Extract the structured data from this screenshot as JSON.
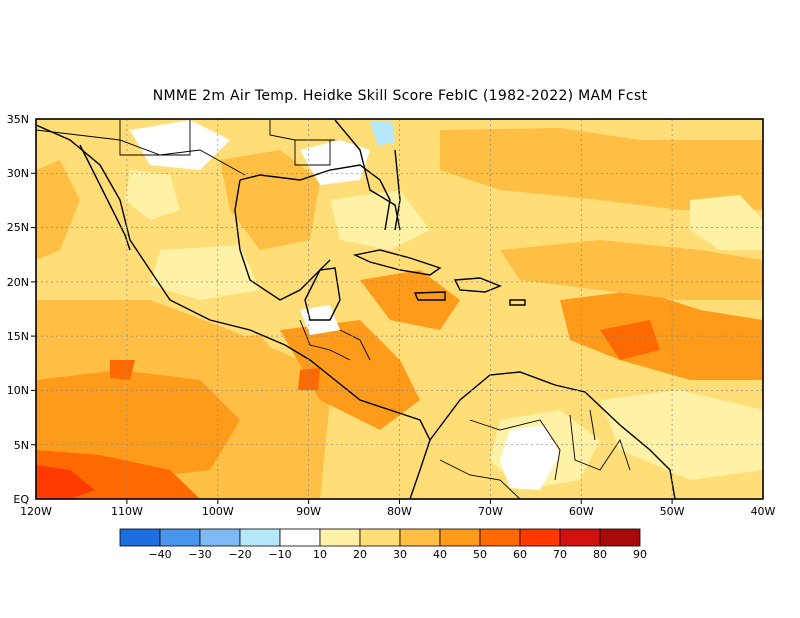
{
  "title": "NMME  2m Air Temp. Heidke Skill Score FebIC (1982-2022) MAM Fcst",
  "map": {
    "lon_ticks": [
      "120W",
      "110W",
      "100W",
      "90W",
      "80W",
      "70W",
      "60W",
      "50W",
      "40W"
    ],
    "lat_ticks": [
      "35N",
      "30N",
      "25N",
      "20N",
      "15N",
      "10N",
      "5N",
      "EQ"
    ],
    "extent": {
      "lon_min": -120,
      "lon_max": -40,
      "lat_min": 0,
      "lat_max": 35
    }
  },
  "colorbar": {
    "labels": [
      "-40",
      "-30",
      "-20",
      "-10",
      "10",
      "20",
      "30",
      "40",
      "50",
      "60",
      "70",
      "80",
      "90"
    ],
    "colors": [
      "#1d6fe0",
      "#4a95ec",
      "#7fb9f3",
      "#b4e8fa",
      "#ffffff",
      "#fff2a6",
      "#ffdd77",
      "#ffbe44",
      "#ff9b1a",
      "#ff6a00",
      "#ff3a00",
      "#d11010",
      "#a60a0a"
    ]
  }
}
